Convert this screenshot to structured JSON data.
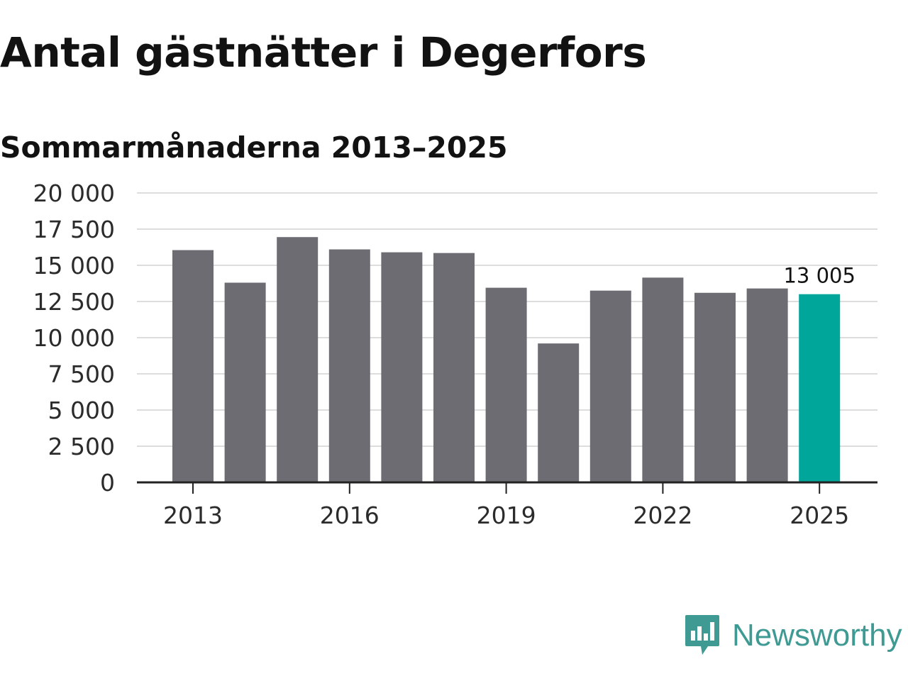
{
  "header": {
    "title": "Antal gästnätter i Degerfors",
    "subtitle": "Sommarmånaderna 2013–2025"
  },
  "chart_data": {
    "type": "bar",
    "title": "Antal gästnätter i Degerfors",
    "subtitle": "Sommarmånaderna 2013–2025",
    "categories": [
      "2013",
      "2014",
      "2015",
      "2016",
      "2017",
      "2018",
      "2019",
      "2020",
      "2021",
      "2022",
      "2023",
      "2024",
      "2025"
    ],
    "values": [
      16050,
      13800,
      16950,
      16100,
      15900,
      15850,
      13450,
      9600,
      13250,
      14150,
      13100,
      13400,
      13005
    ],
    "xlabel": "",
    "ylabel": "",
    "ylim": [
      0,
      20000
    ],
    "yticks": [
      0,
      2500,
      5000,
      7500,
      10000,
      12500,
      15000,
      17500,
      20000
    ],
    "ytick_labels": [
      "0",
      "2 500",
      "5 000",
      "7 500",
      "10 000",
      "12 500",
      "15 000",
      "17 500",
      "20 000"
    ],
    "xtick_labels": [
      "2013",
      "2016",
      "2019",
      "2022",
      "2025"
    ],
    "data_labels": [
      {
        "category": "2025",
        "text": "13 005"
      }
    ],
    "grid": true,
    "legend": "none",
    "colors": {
      "bar": "#6d6c72",
      "highlight": "#00a69a",
      "gridline": "#dddddd",
      "axis": "#222222",
      "text": "#2b2b2b"
    },
    "highlight_category": "2025"
  },
  "brand": {
    "name": "Newsworthy",
    "icon": "newsworthy-logo-icon",
    "color": "#3f9a93"
  }
}
